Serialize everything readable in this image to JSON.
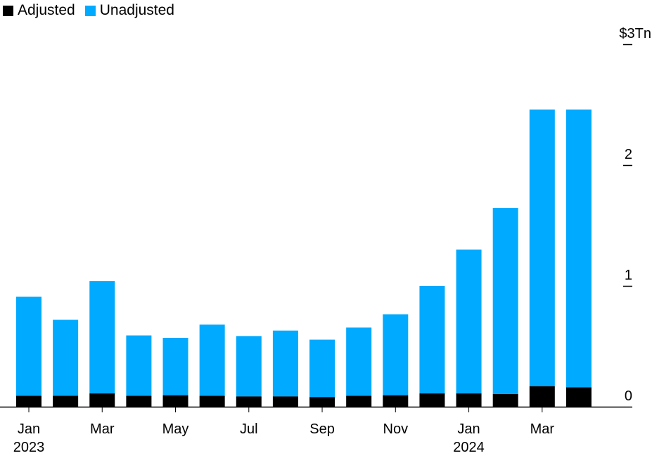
{
  "legend": {
    "adjusted_label": "Adjusted",
    "unadjusted_label": "Unadjusted"
  },
  "colors": {
    "adjusted": "#000000",
    "unadjusted": "#00aaff"
  },
  "chart_data": {
    "type": "bar",
    "stacked": true,
    "title": "",
    "xlabel": "",
    "ylabel": "",
    "ylim": [
      0,
      3
    ],
    "y_unit_label": "$3Tn",
    "y_ticks": [
      0,
      1,
      2,
      3
    ],
    "y_tick_labels": [
      "0",
      "1",
      "2",
      "$3Tn"
    ],
    "y_axis_position": "right",
    "grid": false,
    "legend_position": "top-left",
    "categories": [
      "Jan 2023",
      "Feb 2023",
      "Mar 2023",
      "Apr 2023",
      "May 2023",
      "Jun 2023",
      "Jul 2023",
      "Aug 2023",
      "Sep 2023",
      "Oct 2023",
      "Nov 2023",
      "Dec 2023",
      "Jan 2024",
      "Feb 2024",
      "Mar 2024",
      "Apr 2024"
    ],
    "x_tick_labels": [
      {
        "index": 0,
        "label": "Jan",
        "year": "2023"
      },
      {
        "index": 2,
        "label": "Mar",
        "year": ""
      },
      {
        "index": 4,
        "label": "May",
        "year": ""
      },
      {
        "index": 6,
        "label": "Jul",
        "year": ""
      },
      {
        "index": 8,
        "label": "Sep",
        "year": ""
      },
      {
        "index": 10,
        "label": "Nov",
        "year": ""
      },
      {
        "index": 12,
        "label": "Jan",
        "year": "2024"
      },
      {
        "index": 14,
        "label": "Mar",
        "year": ""
      }
    ],
    "series": [
      {
        "name": "Adjusted",
        "values": [
          0.09,
          0.09,
          0.11,
          0.09,
          0.095,
          0.09,
          0.085,
          0.085,
          0.08,
          0.09,
          0.095,
          0.11,
          0.11,
          0.105,
          0.17,
          0.16
        ]
      },
      {
        "name": "Unadjusted",
        "values": [
          0.82,
          0.63,
          0.93,
          0.5,
          0.475,
          0.59,
          0.5,
          0.545,
          0.475,
          0.565,
          0.67,
          0.89,
          1.19,
          1.54,
          2.29,
          2.3
        ]
      }
    ]
  }
}
